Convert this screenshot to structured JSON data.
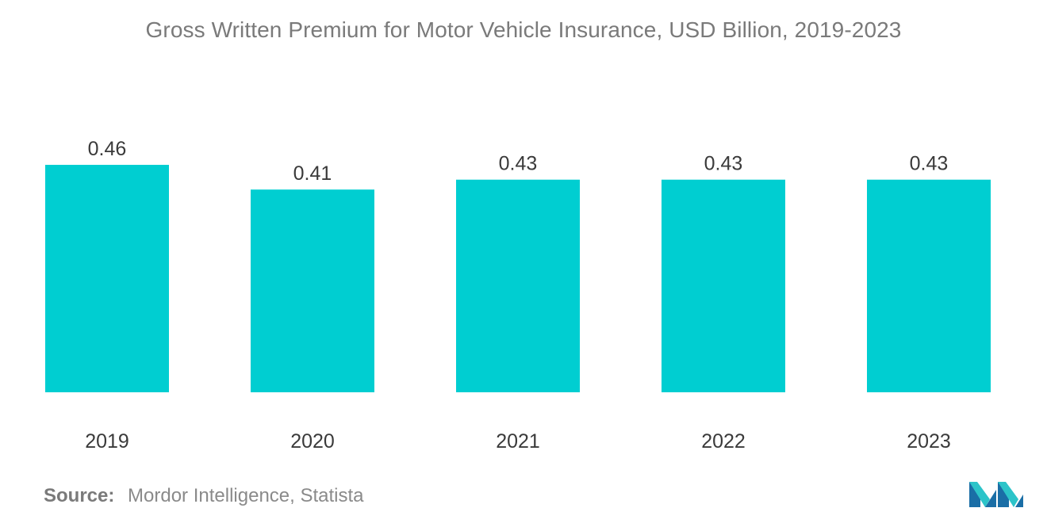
{
  "chart_data": {
    "type": "bar",
    "title": "Gross Written Premium for Motor Vehicle Insurance, USD Billion, 2019-2023",
    "categories": [
      "2019",
      "2020",
      "2021",
      "2022",
      "2023"
    ],
    "values": [
      0.46,
      0.41,
      0.43,
      0.43,
      0.43
    ],
    "value_labels": [
      "0.46",
      "0.41",
      "0.43",
      "0.43",
      "0.43"
    ],
    "xlabel": "",
    "ylabel": "",
    "ylim": [
      0,
      0.46
    ],
    "grid": false,
    "bar_color": "#00ced1"
  },
  "source": {
    "label": "Source:",
    "text": "Mordor Intelligence, Statista"
  },
  "logo": {
    "icon": "mordor-intelligence-logo-icon",
    "colors": [
      "#1a6ea6",
      "#2cc4c9"
    ]
  }
}
